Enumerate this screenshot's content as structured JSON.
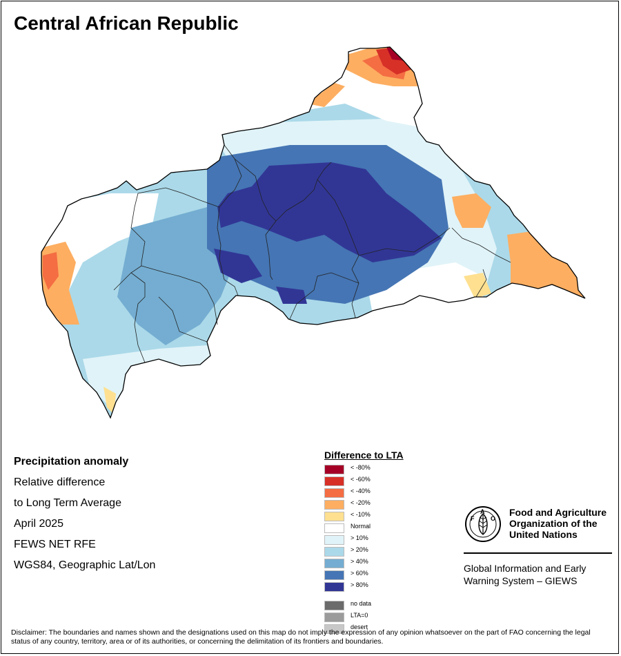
{
  "title": "Central African Republic",
  "info": {
    "heading": "Precipitation anomaly",
    "lines": [
      "Relative difference",
      "to Long Term Average",
      "April 2025",
      "FEWS NET RFE",
      "WGS84, Geographic Lat/Lon"
    ]
  },
  "legend": {
    "title": "Difference to LTA",
    "classes": [
      {
        "label": "< -80%",
        "color": "#a50026"
      },
      {
        "label": "< -60%",
        "color": "#d73027"
      },
      {
        "label": "< -40%",
        "color": "#f46d43"
      },
      {
        "label": "< -20%",
        "color": "#fdae61"
      },
      {
        "label": "< -10%",
        "color": "#fee090"
      },
      {
        "label": "Normal",
        "color": "#ffffff"
      },
      {
        "label": "> 10%",
        "color": "#e0f3f8"
      },
      {
        "label": "> 20%",
        "color": "#abd9e9"
      },
      {
        "label": "> 40%",
        "color": "#74add1"
      },
      {
        "label": "> 60%",
        "color": "#4575b4"
      },
      {
        "label": "> 80%",
        "color": "#313695"
      }
    ],
    "extras": [
      {
        "label": "no data",
        "color": "#6b6b6b"
      },
      {
        "label": "LTA=0",
        "color": "#9b9b9b"
      },
      {
        "label": "desert",
        "color": "#c8c8c8"
      }
    ]
  },
  "fao": {
    "name_lines": [
      "Food and Agriculture",
      "Organization of the",
      "United Nations"
    ],
    "logo_text": "FAO",
    "logo_motto": "FIAT PANIS",
    "giews_lines": [
      "Global Information and Early",
      "Warning System – GIEWS"
    ]
  },
  "disclaimer": "Disclaimer: The boundaries and names shown and the designations used on this map do not imply the expression of any opinion whatsoever on the part of FAO concerning the legal status of any country, territory, area or of its authorities, or concerning the delimitation of its frontiers and boundaries."
}
